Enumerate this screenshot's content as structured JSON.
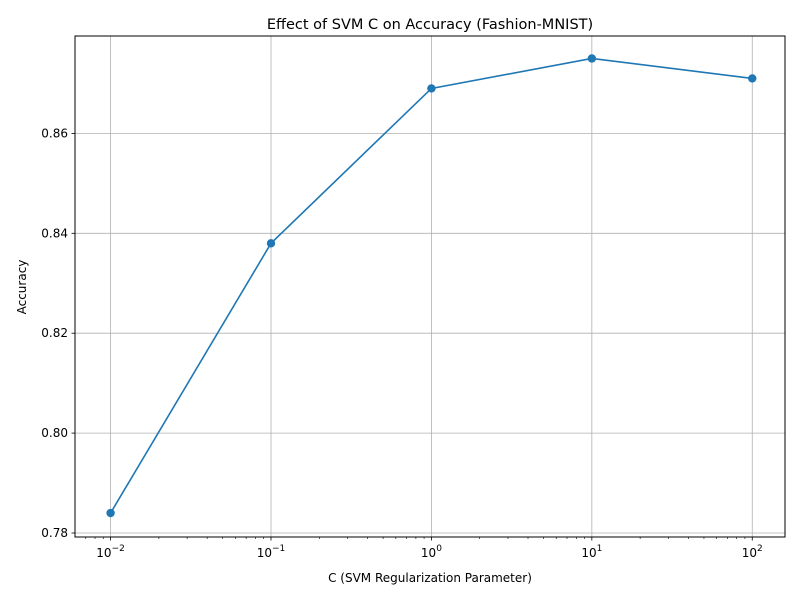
{
  "chart_data": {
    "type": "line",
    "title": "Effect of SVM C on Accuracy (Fashion-MNIST)",
    "xlabel": "C (SVM Regularization Parameter)",
    "ylabel": "Accuracy",
    "xscale": "log",
    "x": [
      0.01,
      0.1,
      1,
      10,
      100
    ],
    "series": [
      {
        "values": [
          0.784,
          0.838,
          0.869,
          0.875,
          0.871
        ]
      }
    ],
    "xticks": [
      {
        "value": 0.01,
        "base": "10",
        "exp": "−2"
      },
      {
        "value": 0.1,
        "base": "10",
        "exp": "−1"
      },
      {
        "value": 1,
        "base": "10",
        "exp": "0"
      },
      {
        "value": 10,
        "base": "10",
        "exp": "1"
      },
      {
        "value": 100,
        "base": "10",
        "exp": "2"
      }
    ],
    "yticks": [
      {
        "value": 0.78,
        "label": "0.78"
      },
      {
        "value": 0.8,
        "label": "0.80"
      },
      {
        "value": 0.82,
        "label": "0.82"
      },
      {
        "value": 0.84,
        "label": "0.84"
      },
      {
        "value": 0.86,
        "label": "0.86"
      }
    ],
    "xlim": [
      0.006,
      160
    ],
    "ylim": [
      0.7792,
      0.8795
    ],
    "grid": true,
    "line_color": "#1f77b4",
    "grid_color": "#b0b0b0"
  }
}
